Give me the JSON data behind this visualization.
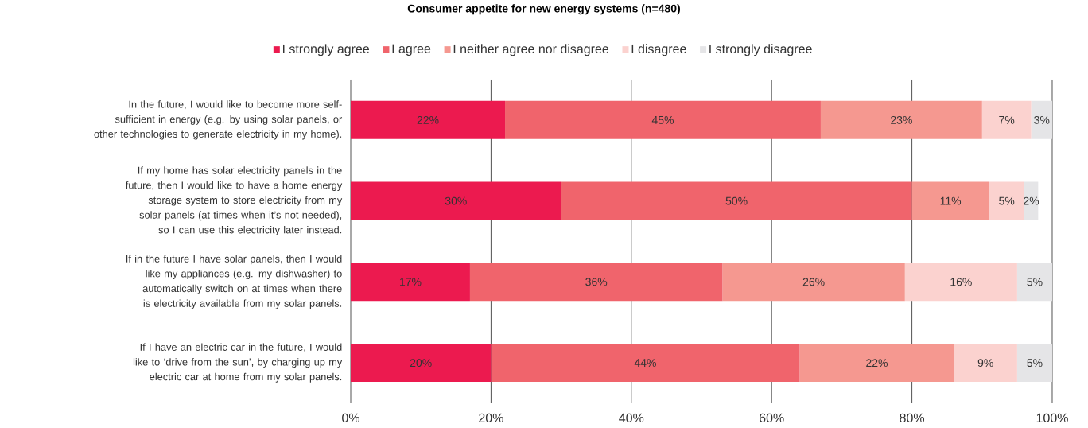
{
  "chart_data": {
    "type": "bar",
    "orientation": "horizontal",
    "stacked": true,
    "title": "Consumer appetite for new energy systems (n=480)",
    "categories": [
      "In the future, I would like to become more self-sufficient in energy (e.g. by using solar panels, or other technologies to generate electricity in my home).",
      "If my home has solar electricity panels in the future, then I would like to have a home energy storage system to store electricity from my solar panels (at times when it’s not needed), so I can use this electricity later instead.",
      "If in the future I have solar panels, then I would like my appliances (e.g. my dishwasher) to automatically switch on at times when there is electricity available from my solar panels.",
      "If I have an electric car in the future, I would like to ‘drive from the sun’, by charging up my electric car at home from my solar panels."
    ],
    "series": [
      {
        "name": "I strongly agree",
        "color": "#ec1a4f",
        "values": [
          22,
          30,
          17,
          20
        ],
        "value_labels": [
          "22%",
          "30%",
          "17%",
          "20%"
        ]
      },
      {
        "name": "I agree",
        "color": "#f0646c",
        "values": [
          45,
          50,
          36,
          44
        ],
        "value_labels": [
          "45%",
          "50%",
          "36%",
          "44%"
        ]
      },
      {
        "name": "I neither agree nor disagree",
        "color": "#f59890",
        "values": [
          23,
          11,
          26,
          22
        ],
        "value_labels": [
          "23%",
          "11%",
          "26%",
          "22%"
        ]
      },
      {
        "name": "I disagree",
        "color": "#fbd2cf",
        "values": [
          7,
          5,
          16,
          9
        ],
        "value_labels": [
          "7%",
          "5%",
          "16%",
          "9%"
        ]
      },
      {
        "name": "I strongly disagree",
        "color": "#e5e5e7",
        "values": [
          3,
          2,
          5,
          5
        ],
        "value_labels": [
          "3%",
          "2%",
          "5%",
          "5%"
        ]
      }
    ],
    "xlim": [
      0,
      100
    ],
    "xticks": [
      {
        "value": 0,
        "label": "0%"
      },
      {
        "value": 20,
        "label": "20%"
      },
      {
        "value": 40,
        "label": "40%"
      },
      {
        "value": 60,
        "label": "60%"
      },
      {
        "value": 80,
        "label": "80%"
      },
      {
        "value": 100,
        "label": "100%"
      }
    ],
    "grid": "x",
    "legend": "top"
  }
}
